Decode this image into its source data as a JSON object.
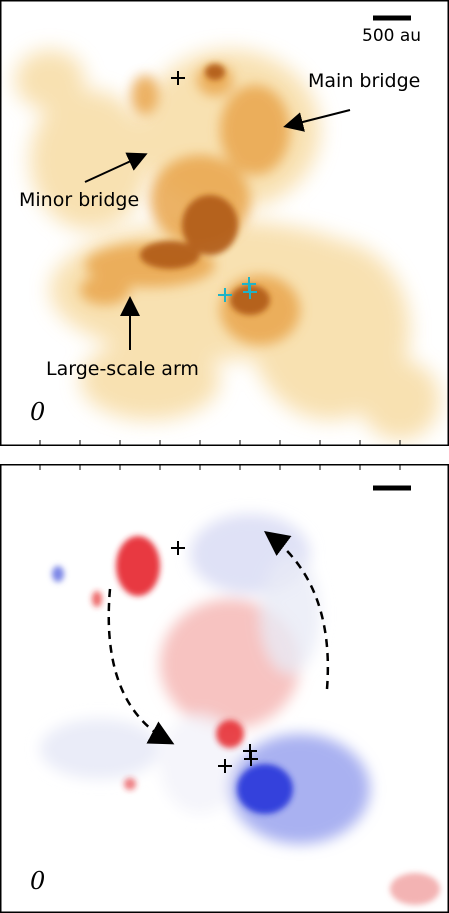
{
  "labels": {
    "main_bridge": "Main bridge",
    "minor_bridge": "Minor bridge",
    "large_scale_arm": "Large-scale arm"
  },
  "scale_bar": {
    "label": "500 au"
  },
  "beam_symbol": "0",
  "colors": {
    "intensity_dark": "#8a3a05",
    "intensity_mid": "#d98a2a",
    "intensity_light": "#f6d79a",
    "redshift": "#e5262b",
    "blueshift": "#1f2fd8",
    "protostar_cyan": "#1fb3c7",
    "protostar_black": "#000000",
    "frame": "#000000"
  },
  "markers": [
    "plus-black",
    "plus-cyan",
    "plus-cyan",
    "plus-cyan"
  ]
}
